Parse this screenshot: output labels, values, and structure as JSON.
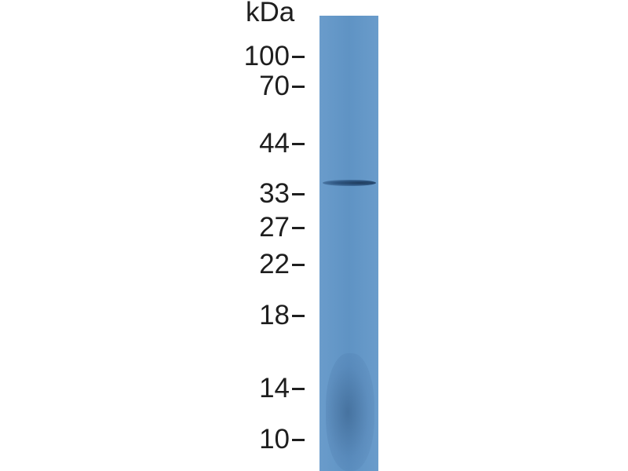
{
  "blot": {
    "unit_label": "kDa",
    "markers": [
      "100",
      "70",
      "44",
      "33",
      "27",
      "22",
      "18",
      "14",
      "10"
    ],
    "lane_color": "#5f93c4",
    "band_color": "#2e5580",
    "detected_band_near_kDa": "33"
  }
}
